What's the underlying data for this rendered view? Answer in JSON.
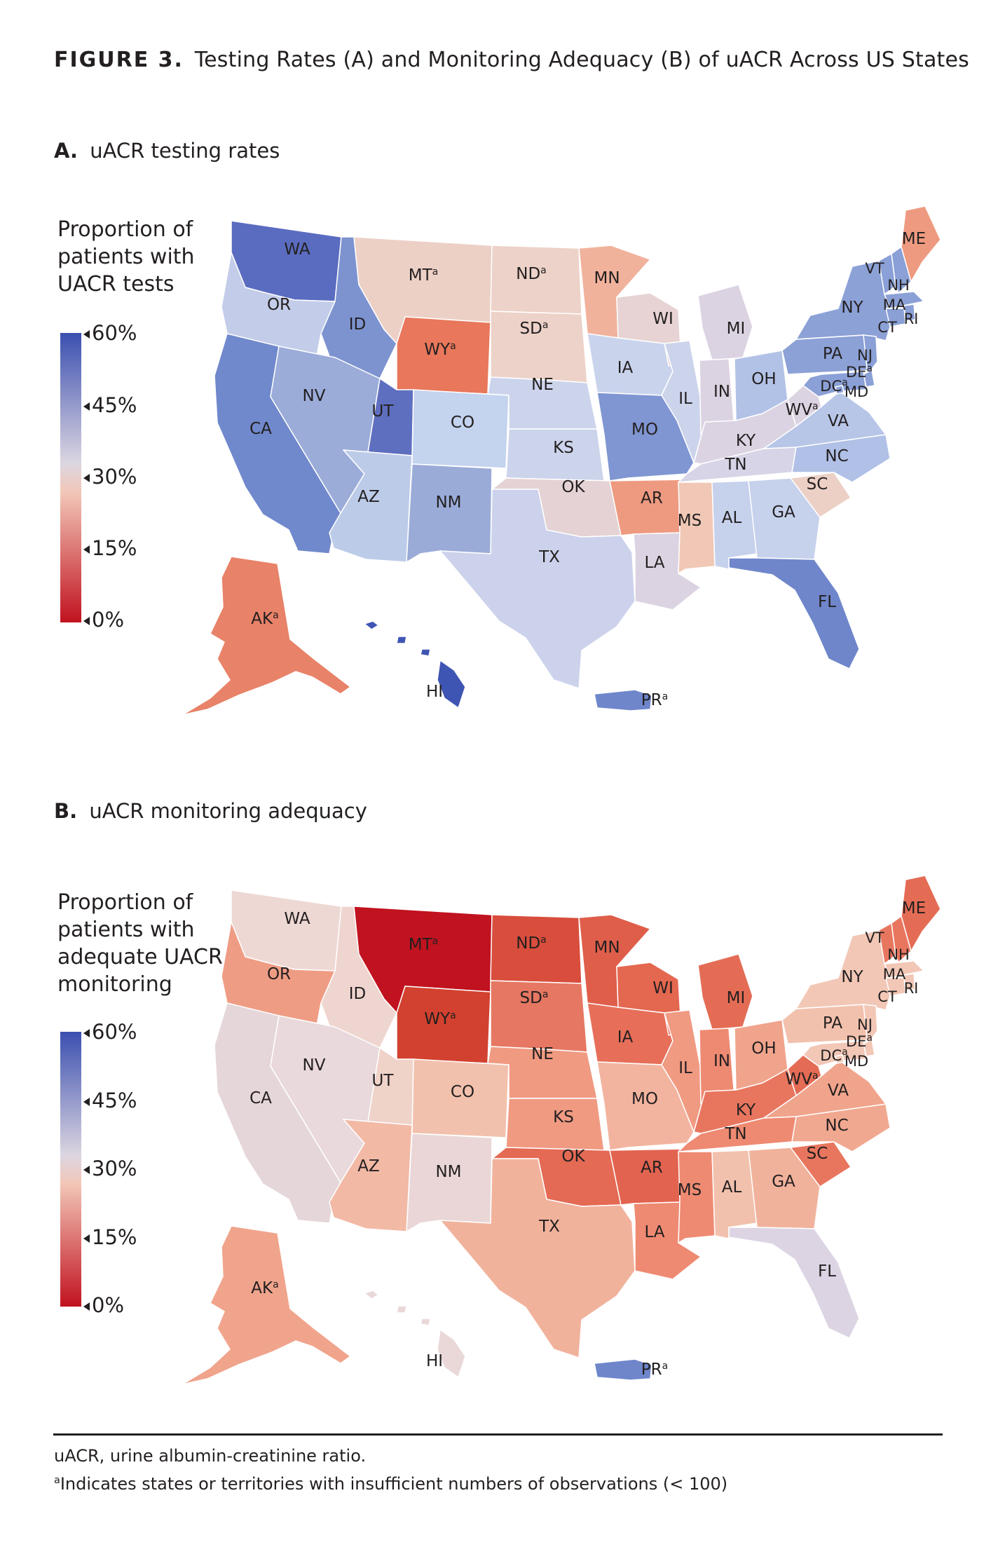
{
  "figure": {
    "label": "FIGURE 3.",
    "title": "Testing Rates (A) and Monitoring Adequacy (B) of uACR Across US States"
  },
  "scale": {
    "ticks": [
      "60%",
      "45%",
      "30%",
      "15%",
      "0%"
    ],
    "colors": {
      "low": "#c1121f",
      "mid": "#f2c7b8",
      "neutral": "#dcd6e1",
      "high": "#3b4fb0"
    }
  },
  "panel_a": {
    "letter": "A.",
    "title": "uACR testing rates",
    "legend_lines": [
      "Proportion of",
      "patients with",
      "UACR tests"
    ],
    "states": {
      "WA": {
        "label": "WA",
        "color": "#5a6cc0"
      },
      "OR": {
        "label": "OR",
        "color": "#c3cde9"
      },
      "CA": {
        "label": "CA",
        "color": "#7088cc"
      },
      "ID": {
        "label": "ID",
        "color": "#7d93d0"
      },
      "NV": {
        "label": "NV",
        "color": "#9bacd9"
      },
      "MT": {
        "label": "MT",
        "color": "#ecd0c6",
        "flag": "a"
      },
      "WY": {
        "label": "WY",
        "color": "#e8775b",
        "flag": "a"
      },
      "UT": {
        "label": "UT",
        "color": "#5f6fbf"
      },
      "AZ": {
        "label": "AZ",
        "color": "#bccbe8"
      },
      "CO": {
        "label": "CO",
        "color": "#c4d3ee"
      },
      "NM": {
        "label": "NM",
        "color": "#9aabd8"
      },
      "ND": {
        "label": "ND",
        "color": "#ecd2c8",
        "flag": "a"
      },
      "SD": {
        "label": "SD",
        "color": "#ecd2c8",
        "flag": "a"
      },
      "NE": {
        "label": "NE",
        "color": "#ccd4ec"
      },
      "KS": {
        "label": "KS",
        "color": "#ccd4ec"
      },
      "OK": {
        "label": "OK",
        "color": "#e4d2d4"
      },
      "TX": {
        "label": "TX",
        "color": "#ccd2eb"
      },
      "MN": {
        "label": "MN",
        "color": "#f1b29c"
      },
      "IA": {
        "label": "IA",
        "color": "#c9d3ec"
      },
      "MO": {
        "label": "MO",
        "color": "#8096d2"
      },
      "AR": {
        "label": "AR",
        "color": "#ee9a80"
      },
      "LA": {
        "label": "LA",
        "color": "#dcd3e2"
      },
      "WI": {
        "label": "WI",
        "color": "#e7d3d3"
      },
      "IL": {
        "label": "IL",
        "color": "#ccd4ec"
      },
      "MI": {
        "label": "MI",
        "color": "#dcd3e2"
      },
      "IN": {
        "label": "IN",
        "color": "#dcd3e2"
      },
      "OH": {
        "label": "OH",
        "color": "#b2c2e6"
      },
      "KY": {
        "label": "KY",
        "color": "#dcd3e2"
      },
      "TN": {
        "label": "TN",
        "color": "#d6d4e6"
      },
      "MS": {
        "label": "MS",
        "color": "#f0c8b5"
      },
      "AL": {
        "label": "AL",
        "color": "#c6d1ec"
      },
      "GA": {
        "label": "GA",
        "color": "#c6d1ec"
      },
      "FL": {
        "label": "FL",
        "color": "#6f86cb"
      },
      "SC": {
        "label": "SC",
        "color": "#ecd0c6"
      },
      "NC": {
        "label": "NC",
        "color": "#b0c0e6"
      },
      "VA": {
        "label": "VA",
        "color": "#b7c5e7"
      },
      "WV": {
        "label": "WV",
        "color": "#dcd3e2",
        "flag": "a"
      },
      "PA": {
        "label": "PA",
        "color": "#8ca1d6"
      },
      "NY": {
        "label": "NY",
        "color": "#8ca1d6"
      },
      "ME": {
        "label": "ME",
        "color": "#ee9a80"
      },
      "VT": {
        "label": "VT",
        "color": "#8aa0d6"
      },
      "NH": {
        "label": "NH",
        "color": "#8aa0d6"
      },
      "MA": {
        "label": "MA",
        "color": "#8aa0d6"
      },
      "CT": {
        "label": "CT",
        "color": "#8aa0d6"
      },
      "RI": {
        "label": "RI",
        "color": "#8aa0d6"
      },
      "NJ": {
        "label": "NJ",
        "color": "#8aa0d6"
      },
      "DE": {
        "label": "DE",
        "color": "#8aa0d6",
        "flag": "a"
      },
      "MD": {
        "label": "MD",
        "color": "#8aa0d6"
      },
      "DC": {
        "label": "DC",
        "color": "#8aa0d6",
        "flag": "a"
      },
      "AK": {
        "label": "AK",
        "color": "#e88268",
        "flag": "a"
      },
      "HI": {
        "label": "HI",
        "color": "#3f55b3"
      },
      "PR": {
        "label": "PR",
        "color": "#6f86cb",
        "flag": "a"
      }
    }
  },
  "panel_b": {
    "letter": "B.",
    "title": "uACR monitoring adequacy",
    "legend_lines": [
      "Proportion of",
      "patients with",
      "adequate UACR",
      "monitoring"
    ],
    "states": {
      "WA": {
        "label": "WA",
        "color": "#eed8d4"
      },
      "OR": {
        "label": "OR",
        "color": "#ef9c84"
      },
      "CA": {
        "label": "CA",
        "color": "#e5d6d9"
      },
      "ID": {
        "label": "ID",
        "color": "#efd5cf"
      },
      "NV": {
        "label": "NV",
        "color": "#e9d9dc"
      },
      "MT": {
        "label": "MT",
        "color": "#c1121f",
        "flag": "a"
      },
      "WY": {
        "label": "WY",
        "color": "#d2412f",
        "flag": "a"
      },
      "UT": {
        "label": "UT",
        "color": "#efd2c8"
      },
      "AZ": {
        "label": "AZ",
        "color": "#f2b9a5"
      },
      "CO": {
        "label": "CO",
        "color": "#f2c1ad"
      },
      "NM": {
        "label": "NM",
        "color": "#ead6d6"
      },
      "ND": {
        "label": "ND",
        "color": "#d84d3c",
        "flag": "a"
      },
      "SD": {
        "label": "SD",
        "color": "#e67762",
        "flag": "a"
      },
      "NE": {
        "label": "NE",
        "color": "#f09a82"
      },
      "KS": {
        "label": "KS",
        "color": "#f09a82"
      },
      "OK": {
        "label": "OK",
        "color": "#e46a54"
      },
      "TX": {
        "label": "TX",
        "color": "#f1b29c"
      },
      "MN": {
        "label": "MN",
        "color": "#df5e4a"
      },
      "IA": {
        "label": "IA",
        "color": "#e76f59"
      },
      "MO": {
        "label": "MO",
        "color": "#f2b49f"
      },
      "AR": {
        "label": "AR",
        "color": "#e26450"
      },
      "LA": {
        "label": "LA",
        "color": "#ee8a72"
      },
      "WI": {
        "label": "WI",
        "color": "#e4674f"
      },
      "IL": {
        "label": "IL",
        "color": "#f09a82"
      },
      "MI": {
        "label": "MI",
        "color": "#e46c55"
      },
      "IN": {
        "label": "IN",
        "color": "#ee8a72"
      },
      "OH": {
        "label": "OH",
        "color": "#f0a48c"
      },
      "KY": {
        "label": "KY",
        "color": "#e8765f"
      },
      "TN": {
        "label": "TN",
        "color": "#ee8a72"
      },
      "MS": {
        "label": "MS",
        "color": "#ee8a72"
      },
      "AL": {
        "label": "AL",
        "color": "#f2c1ad"
      },
      "GA": {
        "label": "GA",
        "color": "#f1b29c"
      },
      "FL": {
        "label": "FL",
        "color": "#dcd4e3"
      },
      "SC": {
        "label": "SC",
        "color": "#e8765f"
      },
      "NC": {
        "label": "NC",
        "color": "#f1a890"
      },
      "VA": {
        "label": "VA",
        "color": "#f0a48c"
      },
      "WV": {
        "label": "WV",
        "color": "#e46c55",
        "flag": "a"
      },
      "PA": {
        "label": "PA",
        "color": "#f2c1ad"
      },
      "NY": {
        "label": "NY",
        "color": "#f2c7b6"
      },
      "ME": {
        "label": "ME",
        "color": "#e46c55"
      },
      "VT": {
        "label": "VT",
        "color": "#e8765f"
      },
      "NH": {
        "label": "NH",
        "color": "#e8765f"
      },
      "MA": {
        "label": "MA",
        "color": "#f2c7b6"
      },
      "CT": {
        "label": "CT",
        "color": "#f2c7b6"
      },
      "RI": {
        "label": "RI",
        "color": "#f2c7b6"
      },
      "NJ": {
        "label": "NJ",
        "color": "#f2c7b6"
      },
      "DE": {
        "label": "DE",
        "color": "#f2c7b6",
        "flag": "a"
      },
      "MD": {
        "label": "MD",
        "color": "#f2c7b6"
      },
      "DC": {
        "label": "DC",
        "color": "#f2c7b6",
        "flag": "a"
      },
      "AK": {
        "label": "AK",
        "color": "#f0a48c",
        "flag": "a"
      },
      "HI": {
        "label": "HI",
        "color": "#ead8d8"
      },
      "PR": {
        "label": "PR",
        "color": "#6f86cb",
        "flag": "a"
      }
    }
  },
  "footnotes": {
    "abbrev": "uACR, urine albumin-creatinine ratio.",
    "marker": "a",
    "flag_note": "Indicates states or territories with insufficient numbers of observations (< 100)"
  }
}
